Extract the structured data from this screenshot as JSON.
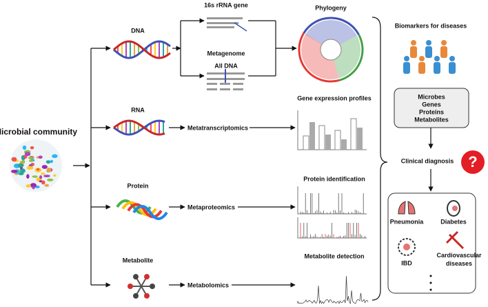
{
  "source": {
    "title": "Microbial community"
  },
  "molecules": [
    "DNA",
    "RNA",
    "Protein",
    "Metabolite"
  ],
  "dna_branches": {
    "amplicon": "16s rRNA gene",
    "shotgun": "Metagenome",
    "shotgun_note": "All DNA"
  },
  "methods": [
    "Metatranscriptomics",
    "Metaproteomics",
    "Metabolomics"
  ],
  "outputs": [
    "Phylogeny",
    "Gene expression profiles",
    "Protein identification",
    "Metabolite detection"
  ],
  "biomarkers": {
    "title": "Biomarkers for diseases",
    "items": [
      "Microbes",
      "Genes",
      "Proteins",
      "Metabolites"
    ]
  },
  "diagnosis": {
    "title": "Clinical diagnosis",
    "icon": "?"
  },
  "diseases": [
    "Pneumonia",
    "Diabetes",
    "IBD",
    "Cardiovascular diseases"
  ]
}
